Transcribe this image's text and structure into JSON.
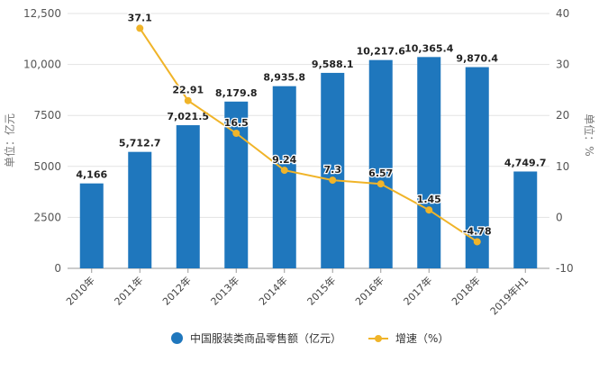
{
  "chart_data": {
    "type": "bar+line",
    "categories": [
      "2010年",
      "2011年",
      "2012年",
      "2013年",
      "2014年",
      "2015年",
      "2016年",
      "2017年",
      "2018年",
      "2019年H1"
    ],
    "series": [
      {
        "name": "中国服装类商品零售额（亿元）",
        "type": "bar",
        "axis": "left",
        "color": "#1f77bd",
        "values": [
          4166,
          5712.7,
          7021.5,
          8179.8,
          8935.8,
          9588.1,
          10217.6,
          10365.4,
          9870.4,
          4749.7
        ],
        "labels": [
          "4,166",
          "5,712.7",
          "7,021.5",
          "8,179.8",
          "8,935.8",
          "9,588.1",
          "10,217.6",
          "10,365.4",
          "9,870.4",
          "4,749.7"
        ]
      },
      {
        "name": "增速（%）",
        "type": "line",
        "axis": "right",
        "color": "#f0b429",
        "values": [
          null,
          37.1,
          22.91,
          16.5,
          9.24,
          7.3,
          6.57,
          1.45,
          -4.78,
          null
        ],
        "labels": [
          "",
          "37.1",
          "22.91",
          "16.5",
          "9.24",
          "7.3",
          "6.57",
          "1.45",
          "-4.78",
          ""
        ]
      }
    ],
    "left_axis": {
      "label": "单位：亿元",
      "range": [
        0,
        12500
      ],
      "ticks": [
        "0",
        "2500",
        "5000",
        "7500",
        "10,000",
        "12,500"
      ],
      "tick_values": [
        0,
        2500,
        5000,
        7500,
        10000,
        12500
      ]
    },
    "right_axis": {
      "label": "单位：%",
      "range": [
        -10,
        40
      ],
      "ticks": [
        "-10",
        "0",
        "10",
        "20",
        "30",
        "40"
      ],
      "tick_values": [
        -10,
        0,
        10,
        20,
        30,
        40
      ]
    },
    "grid": true,
    "legend": "bottom"
  }
}
